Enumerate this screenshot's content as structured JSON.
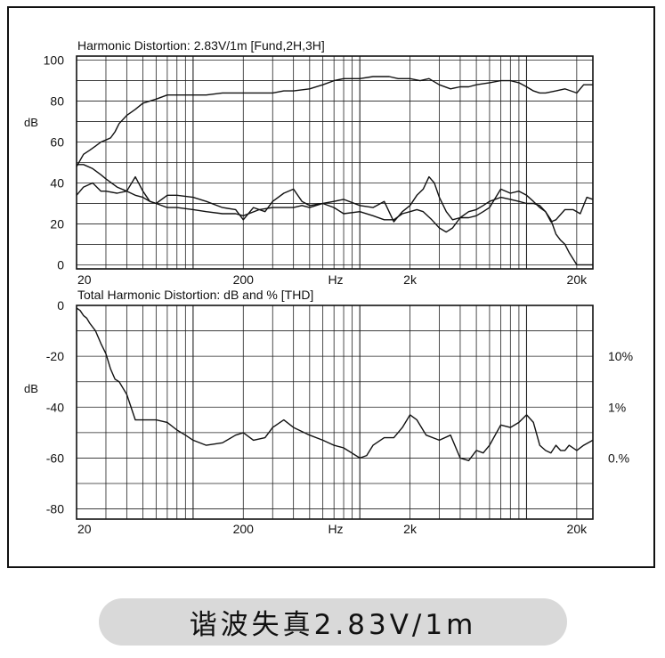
{
  "caption": "谐波失真2.83V/1m",
  "x_axis_unit": "Hz",
  "chart_data": [
    {
      "type": "line",
      "title": "Harmonic Distortion: 2.83V/1m [Fund,2H,3H]",
      "ylabel": "dB",
      "x_scale": "log",
      "xlim": [
        20,
        25000
      ],
      "ylim": [
        -2,
        102
      ],
      "x_tick_labels": [
        {
          "value": 20,
          "label": "20"
        },
        {
          "value": 200,
          "label": "200"
        },
        {
          "value": 2000,
          "label": "2k"
        },
        {
          "value": 20000,
          "label": "20k"
        }
      ],
      "y_ticks": [
        0,
        20,
        40,
        60,
        80,
        100
      ],
      "grid": true,
      "series": [
        {
          "id": "fund",
          "x": [
            20,
            22,
            24,
            26,
            28,
            30,
            32,
            34,
            36,
            40,
            45,
            50,
            60,
            70,
            80,
            100,
            120,
            150,
            200,
            250,
            300,
            350,
            400,
            500,
            600,
            700,
            800,
            1000,
            1200,
            1500,
            1700,
            2000,
            2300,
            2600,
            3000,
            3500,
            4000,
            4500,
            5000,
            6000,
            7000,
            8000,
            9000,
            10000,
            11000,
            12000,
            13000,
            15000,
            17000,
            20000,
            22000,
            25000
          ],
          "y": [
            48,
            54,
            56,
            58,
            60,
            61,
            62,
            65,
            69,
            73,
            76,
            79,
            81,
            83,
            83,
            83,
            83,
            84,
            84,
            84,
            84,
            85,
            85,
            86,
            88,
            90,
            91,
            91,
            92,
            92,
            91,
            91,
            90,
            91,
            88,
            86,
            87,
            87,
            88,
            89,
            90,
            90,
            89,
            87,
            85,
            84,
            84,
            85,
            86,
            84,
            88,
            88
          ]
        },
        {
          "id": "2h",
          "x": [
            20,
            22,
            25,
            28,
            30,
            35,
            40,
            45,
            50,
            55,
            60,
            70,
            80,
            100,
            120,
            150,
            180,
            200,
            230,
            270,
            300,
            350,
            400,
            450,
            500,
            600,
            700,
            800,
            1000,
            1200,
            1400,
            1600,
            1800,
            2000,
            2200,
            2400,
            2600,
            2800,
            3000,
            3300,
            3600,
            4000,
            4500,
            5000,
            5500,
            6000,
            7000,
            8000,
            9000,
            10000,
            11000,
            12000,
            13000,
            14000,
            15000,
            17000,
            19000,
            21000,
            23000,
            25000
          ],
          "y": [
            34,
            38,
            40,
            36,
            36,
            35,
            36,
            43,
            36,
            31,
            30,
            34,
            34,
            33,
            31,
            28,
            27,
            22,
            28,
            26,
            31,
            35,
            37,
            31,
            29,
            30,
            31,
            32,
            29,
            28,
            31,
            21,
            26,
            29,
            34,
            37,
            43,
            40,
            33,
            26,
            22,
            23,
            23,
            24,
            26,
            28,
            37,
            35,
            36,
            34,
            31,
            28,
            26,
            21,
            22,
            27,
            27,
            25,
            33,
            32
          ]
        },
        {
          "id": "3h",
          "x": [
            20,
            22,
            25,
            28,
            30,
            35,
            40,
            45,
            50,
            55,
            60,
            70,
            80,
            100,
            120,
            150,
            180,
            200,
            250,
            300,
            350,
            400,
            450,
            500,
            600,
            700,
            800,
            1000,
            1200,
            1400,
            1600,
            1800,
            2000,
            2200,
            2400,
            2700,
            3000,
            3300,
            3600,
            4000,
            4500,
            5000,
            5500,
            6000,
            7000,
            8000,
            9000,
            10000,
            11000,
            12000,
            13000,
            14000,
            15000,
            16000,
            17000,
            18000,
            20000,
            22000,
            25000
          ],
          "y": [
            49,
            49,
            47,
            44,
            42,
            38,
            36,
            34,
            33,
            31,
            30,
            28,
            28,
            27,
            26,
            25,
            25,
            24,
            27,
            28,
            28,
            28,
            29,
            28,
            30,
            28,
            25,
            26,
            24,
            22,
            22,
            25,
            26,
            27,
            26,
            22,
            18,
            16,
            18,
            23,
            26,
            27,
            29,
            31,
            33,
            32,
            31,
            30,
            30,
            29,
            26,
            22,
            15,
            12,
            10,
            6,
            0,
            0,
            0
          ]
        }
      ]
    },
    {
      "type": "line",
      "title": "Total Harmonic Distortion: dB and % [THD]",
      "ylabel": "dB",
      "x_scale": "log",
      "xlim": [
        20,
        25000
      ],
      "ylim": [
        -84,
        0
      ],
      "x_tick_labels": [
        {
          "value": 20,
          "label": "20"
        },
        {
          "value": 200,
          "label": "200"
        },
        {
          "value": 2000,
          "label": "2k"
        },
        {
          "value": 20000,
          "label": "20k"
        }
      ],
      "y_ticks": [
        0,
        -20,
        -40,
        -60,
        -80
      ],
      "percent_labels": [
        {
          "value": -20,
          "label": "10%"
        },
        {
          "value": -40,
          "label": "1%"
        },
        {
          "value": -60,
          "label": "0.%"
        }
      ],
      "grid": true,
      "series": [
        {
          "id": "thd",
          "x": [
            20,
            21,
            22,
            23,
            24,
            26,
            28,
            30,
            32,
            34,
            36,
            40,
            45,
            50,
            55,
            60,
            70,
            80,
            90,
            100,
            120,
            150,
            180,
            200,
            230,
            270,
            300,
            350,
            400,
            500,
            600,
            700,
            800,
            1000,
            1100,
            1200,
            1400,
            1600,
            1800,
            2000,
            2200,
            2500,
            3000,
            3500,
            4000,
            4500,
            5000,
            5500,
            6000,
            7000,
            8000,
            9000,
            10000,
            11000,
            12000,
            13000,
            14000,
            15000,
            16000,
            17000,
            18000,
            20000,
            22000,
            25000
          ],
          "y": [
            -1,
            -2,
            -4,
            -5,
            -7,
            -10,
            -15,
            -19,
            -25,
            -29,
            -30,
            -35,
            -45,
            -45,
            -45,
            -45,
            -46,
            -49,
            -51,
            -53,
            -55,
            -54,
            -51,
            -50,
            -53,
            -52,
            -48,
            -45,
            -48,
            -51,
            -53,
            -55,
            -56,
            -60,
            -59,
            -55,
            -52,
            -52,
            -48,
            -43,
            -45,
            -51,
            -53,
            -51,
            -60,
            -61,
            -57,
            -58,
            -55,
            -47,
            -48,
            -46,
            -43,
            -46,
            -55,
            -57,
            -58,
            -55,
            -57,
            -57,
            -55,
            -57,
            -55,
            -53
          ]
        }
      ]
    }
  ]
}
